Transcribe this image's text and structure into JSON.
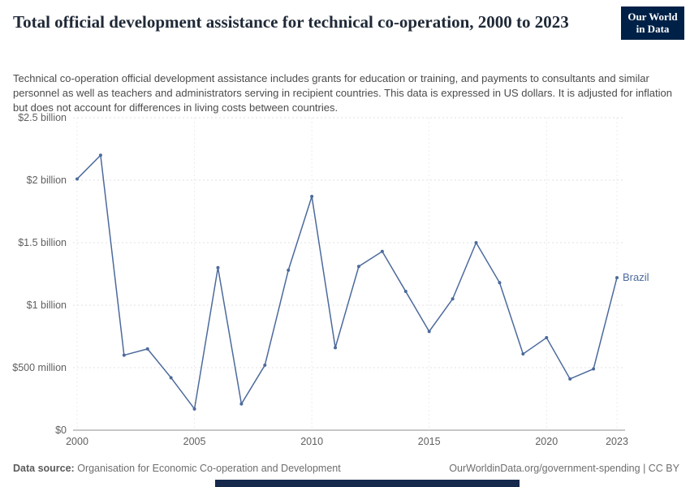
{
  "logo": {
    "line1": "Our World",
    "line2": "in Data"
  },
  "header": {
    "title": "Total official development assistance for technical co-operation, 2000 to 2023",
    "subtitle": "Technical co-operation official development assistance includes grants for education or training, and payments to consultants and similar personnel as well as teachers and administrators serving in recipient countries. This data is expressed in US dollars. It is adjusted for inflation but does not account for differences in living costs between countries."
  },
  "chart_data": {
    "type": "line",
    "title": "Total official development assistance for technical co-operation, 2000 to 2023",
    "xlabel": "",
    "ylabel": "",
    "values_unit": "billion US$",
    "xlim": [
      2000,
      2023
    ],
    "ylim": [
      0,
      2.5
    ],
    "grid": "dashed horizontal gridlines at y ticks, faint dashed vertical lines at x ticks",
    "legend_position": "end-of-line label",
    "x_ticks": [
      2000,
      2005,
      2010,
      2015,
      2020,
      2023
    ],
    "y_ticks": [
      {
        "value": 0,
        "label": "$0"
      },
      {
        "value": 0.5,
        "label": "$500 million"
      },
      {
        "value": 1,
        "label": "$1 billion"
      },
      {
        "value": 1.5,
        "label": "$1.5 billion"
      },
      {
        "value": 2,
        "label": "$2 billion"
      },
      {
        "value": 2.5,
        "label": "$2.5 billion"
      }
    ],
    "end_label": "Brazil",
    "series": [
      {
        "name": "Brazil",
        "color": "#4c6a9c",
        "x": [
          2000,
          2001,
          2002,
          2003,
          2004,
          2005,
          2006,
          2007,
          2008,
          2009,
          2010,
          2011,
          2012,
          2013,
          2014,
          2015,
          2016,
          2017,
          2018,
          2019,
          2020,
          2021,
          2022,
          2023
        ],
        "values": [
          2.01,
          2.2,
          0.6,
          0.65,
          0.42,
          0.17,
          1.3,
          0.21,
          0.52,
          1.28,
          1.87,
          0.66,
          1.31,
          1.43,
          1.11,
          0.79,
          1.05,
          1.5,
          1.18,
          0.61,
          0.74,
          0.41,
          0.49,
          1.22
        ]
      }
    ]
  },
  "footer": {
    "source_label": "Data source:",
    "source_value": "Organisation for Economic Co-operation and Development",
    "right_text": "OurWorldinData.org/government-spending | CC BY"
  }
}
